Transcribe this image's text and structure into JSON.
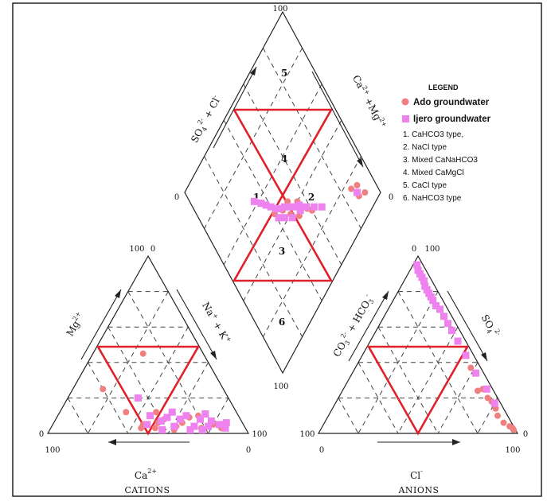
{
  "chart_data": {
    "type": "scatter",
    "subtype": "piper_trilinear_diagram",
    "grid": true,
    "colors": {
      "ado": "#f08080",
      "ijero": "#ee82ee",
      "lines": "#1a1a1a",
      "zones": "#e0202a"
    },
    "cation_triangle": {
      "title": "CATIONS",
      "axes": {
        "ca": "Ca",
        "ca_sup": "2+",
        "mg": "Mg",
        "mg_sup": "2+",
        "na": "Na",
        "na_sup": "+",
        "plus": "+",
        "k": "K",
        "k_sup": "+"
      },
      "ticks": {
        "apex": "100",
        "apex_zero": "0",
        "left_zero": "0",
        "left_hundred": "100",
        "right_hundred": "100",
        "right_zero": "0"
      }
    },
    "anion_triangle": {
      "title": "ANIONS",
      "axes": {
        "cl": "Cl",
        "cl_sup": "-",
        "so4": "SO",
        "so4_sub": "4",
        "so4_sup": "2-",
        "co3": "CO",
        "co3_sub": "3",
        "co3_sup": "2-",
        "hco3": "HCO",
        "hco3_sub": "3",
        "hco3_sup": "-",
        "plus": "+"
      },
      "ticks": {
        "apex_zero": "0",
        "apex": "100",
        "left_hundred": "100",
        "left_zero": "0",
        "right_zero": "0",
        "right_hundred": "100"
      }
    },
    "diamond": {
      "axes": {
        "left_so4": "SO",
        "left_so4_sub": "4",
        "left_so4_sup": "2-",
        "left_plus": "+",
        "left_cl": "Cl",
        "left_cl_sup": "-",
        "right_ca": "Ca",
        "right_ca_sup": "2+",
        "right_plus": "+",
        "right_mg": "Mg",
        "right_mg_sup": "2+"
      },
      "ticks": {
        "top": "100",
        "left": "0",
        "right": "0",
        "bottom": "100"
      },
      "zones": [
        "1",
        "2",
        "3",
        "4",
        "5",
        "6"
      ]
    },
    "legend": {
      "title": "LEGEND",
      "placement": "right of diamond",
      "series": [
        "Ado groundwater",
        "Ijero groundwater"
      ],
      "types": [
        "1. CaHCO3 type,",
        "2. NaCl type",
        "3. Mixed CaNaHCO3",
        "4. Mixed CaMgCl",
        "5. CaCl type",
        "6. NaHCO3 type"
      ]
    },
    "series": [
      {
        "name": "Ado groundwater",
        "marker": "circle",
        "color": "#f08080",
        "cation_points": [
          {
            "Ca": 30,
            "Mg": 45,
            "NaK": 25
          },
          {
            "Ca": 60,
            "Mg": 25,
            "NaK": 15
          },
          {
            "Ca": 55,
            "Mg": 12,
            "NaK": 33
          },
          {
            "Ca": 40,
            "Mg": 12,
            "NaK": 48
          },
          {
            "Ca": 50,
            "Mg": 5,
            "NaK": 45
          },
          {
            "Ca": 45,
            "Mg": 3,
            "NaK": 52
          },
          {
            "Ca": 38,
            "Mg": 8,
            "NaK": 54
          },
          {
            "Ca": 34,
            "Mg": 4,
            "NaK": 62
          },
          {
            "Ca": 30,
            "Mg": 6,
            "NaK": 64
          },
          {
            "Ca": 25,
            "Mg": 9,
            "NaK": 66
          },
          {
            "Ca": 22,
            "Mg": 3,
            "NaK": 75
          },
          {
            "Ca": 20,
            "Mg": 10,
            "NaK": 70
          },
          {
            "Ca": 15,
            "Mg": 5,
            "NaK": 80
          },
          {
            "Ca": 12,
            "Mg": 3,
            "NaK": 85
          },
          {
            "Ca": 28,
            "Mg": 2,
            "NaK": 70
          },
          {
            "Ca": 42,
            "Mg": 6,
            "NaK": 52
          },
          {
            "Ca": 36,
            "Mg": 2,
            "NaK": 62
          },
          {
            "Ca": 52,
            "Mg": 3,
            "NaK": 45
          }
        ],
        "anion_points": [
          {
            "Cl": 58,
            "SO4": 37,
            "CO3": 5
          },
          {
            "Cl": 70,
            "SO4": 25,
            "CO3": 5
          },
          {
            "Cl": 68,
            "SO4": 24,
            "CO3": 8
          },
          {
            "Cl": 75,
            "SO4": 20,
            "CO3": 5
          },
          {
            "Cl": 85,
            "SO4": 10,
            "CO3": 5
          },
          {
            "Cl": 90,
            "SO4": 6,
            "CO3": 4
          },
          {
            "Cl": 94,
            "SO4": 4,
            "CO3": 2
          },
          {
            "Cl": 96,
            "SO4": 3,
            "CO3": 1
          },
          {
            "Cl": 62,
            "SO4": 34,
            "CO3": 4
          },
          {
            "Cl": 78,
            "SO4": 18,
            "CO3": 4
          },
          {
            "Cl": 82,
            "SO4": 14,
            "CO3": 4
          },
          {
            "Cl": 97,
            "SO4": 2,
            "CO3": 1
          }
        ],
        "diamond_points": [
          {
            "x": 92,
            "y": 8
          },
          {
            "x": 90,
            "y": 14
          },
          {
            "x": 86,
            "y": 16
          },
          {
            "x": 88,
            "y": 10
          },
          {
            "x": 60,
            "y": 30
          },
          {
            "x": 58,
            "y": 33
          },
          {
            "x": 52,
            "y": 35
          },
          {
            "x": 48,
            "y": 40
          },
          {
            "x": 45,
            "y": 45
          },
          {
            "x": 55,
            "y": 40
          },
          {
            "x": 40,
            "y": 48
          },
          {
            "x": 50,
            "y": 45
          }
        ]
      },
      {
        "name": "Ijero groundwater",
        "marker": "square",
        "color": "#ee82ee",
        "cation_points": [
          {
            "Ca": 45,
            "Mg": 20,
            "NaK": 35
          },
          {
            "Ca": 48,
            "Mg": 5,
            "NaK": 47
          },
          {
            "Ca": 40,
            "Mg": 7,
            "NaK": 53
          },
          {
            "Ca": 35,
            "Mg": 4,
            "NaK": 61
          },
          {
            "Ca": 30,
            "Mg": 8,
            "NaK": 62
          },
          {
            "Ca": 25,
            "Mg": 4,
            "NaK": 71
          },
          {
            "Ca": 20,
            "Mg": 8,
            "NaK": 72
          },
          {
            "Ca": 18,
            "Mg": 4,
            "NaK": 78
          },
          {
            "Ca": 15,
            "Mg": 7,
            "NaK": 78
          },
          {
            "Ca": 12,
            "Mg": 5,
            "NaK": 83
          },
          {
            "Ca": 10,
            "Mg": 3,
            "NaK": 87
          },
          {
            "Ca": 26,
            "Mg": 10,
            "NaK": 64
          },
          {
            "Ca": 32,
            "Mg": 12,
            "NaK": 56
          },
          {
            "Ca": 36,
            "Mg": 9,
            "NaK": 55
          },
          {
            "Ca": 22,
            "Mg": 2,
            "NaK": 76
          },
          {
            "Ca": 28,
            "Mg": 2,
            "NaK": 70
          },
          {
            "Ca": 42,
            "Mg": 2,
            "NaK": 56
          },
          {
            "Ca": 44,
            "Mg": 10,
            "NaK": 46
          },
          {
            "Ca": 16,
            "Mg": 11,
            "NaK": 73
          },
          {
            "Ca": 8,
            "Mg": 6,
            "NaK": 86
          }
        ],
        "anion_points": [
          {
            "Cl": 2,
            "SO4": 95,
            "CO3": 3
          },
          {
            "Cl": 4,
            "SO4": 92,
            "CO3": 4
          },
          {
            "Cl": 6,
            "SO4": 90,
            "CO3": 4
          },
          {
            "Cl": 8,
            "SO4": 88,
            "CO3": 4
          },
          {
            "Cl": 10,
            "SO4": 86,
            "CO3": 4
          },
          {
            "Cl": 12,
            "SO4": 83,
            "CO3": 5
          },
          {
            "Cl": 14,
            "SO4": 81,
            "CO3": 5
          },
          {
            "Cl": 16,
            "SO4": 79,
            "CO3": 5
          },
          {
            "Cl": 18,
            "SO4": 77,
            "CO3": 5
          },
          {
            "Cl": 20,
            "SO4": 75,
            "CO3": 5
          },
          {
            "Cl": 23,
            "SO4": 72,
            "CO3": 5
          },
          {
            "Cl": 26,
            "SO4": 70,
            "CO3": 4
          },
          {
            "Cl": 30,
            "SO4": 66,
            "CO3": 4
          },
          {
            "Cl": 34,
            "SO4": 62,
            "CO3": 4
          },
          {
            "Cl": 38,
            "SO4": 58,
            "CO3": 4
          },
          {
            "Cl": 44,
            "SO4": 52,
            "CO3": 4
          },
          {
            "Cl": 52,
            "SO4": 44,
            "CO3": 4
          },
          {
            "Cl": 62,
            "SO4": 34,
            "CO3": 4
          },
          {
            "Cl": 72,
            "SO4": 25,
            "CO3": 3
          },
          {
            "Cl": 80,
            "SO4": 17,
            "CO3": 3
          }
        ],
        "diamond_points": [
          {
            "x": 88,
            "y": 12
          },
          {
            "x": 66,
            "y": 26
          },
          {
            "x": 62,
            "y": 30
          },
          {
            "x": 58,
            "y": 34
          },
          {
            "x": 55,
            "y": 38
          },
          {
            "x": 52,
            "y": 40
          },
          {
            "x": 50,
            "y": 42
          },
          {
            "x": 47,
            "y": 45
          },
          {
            "x": 44,
            "y": 47
          },
          {
            "x": 42,
            "y": 49
          },
          {
            "x": 40,
            "y": 52
          },
          {
            "x": 38,
            "y": 55
          },
          {
            "x": 54,
            "y": 36
          },
          {
            "x": 48,
            "y": 38
          },
          {
            "x": 44,
            "y": 42
          },
          {
            "x": 41,
            "y": 45
          },
          {
            "x": 36,
            "y": 58
          },
          {
            "x": 33,
            "y": 62
          }
        ]
      }
    ]
  }
}
